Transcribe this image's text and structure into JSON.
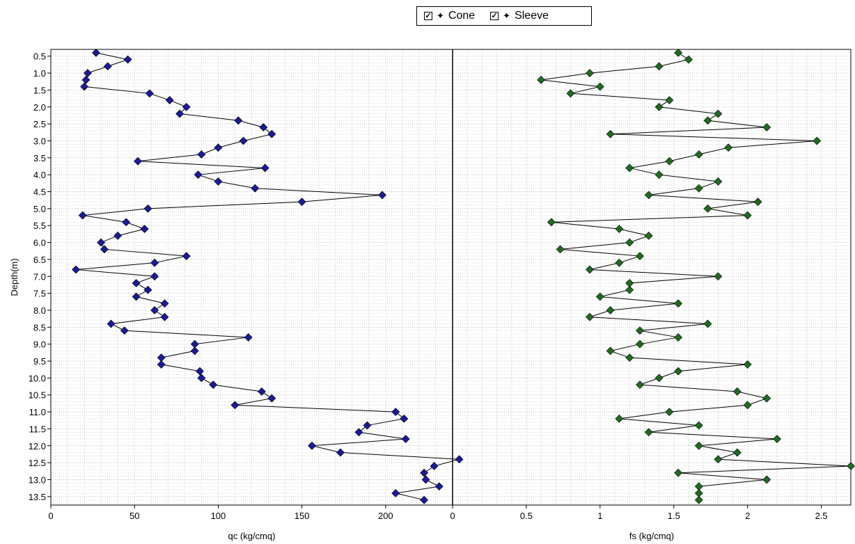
{
  "legend": {
    "cone": {
      "label": "Cone",
      "check": "✓",
      "marker": "✦"
    },
    "sleeve": {
      "label": "Sleeve",
      "check": "✓",
      "marker": "✦"
    }
  },
  "chart_data": [
    {
      "type": "line",
      "name": "Cone",
      "xlabel": "qc (kg/cmq)",
      "ylabel": "Depth(m)",
      "xlim": [
        0,
        240
      ],
      "ylim": [
        13.75,
        0.3
      ],
      "xticks": [
        0,
        50,
        100,
        150,
        200
      ],
      "xtick_labels": [
        "0",
        "50",
        "100",
        "150",
        "200"
      ],
      "yticks": [
        0.5,
        1,
        1.5,
        2,
        2.5,
        3,
        3.5,
        4,
        4.5,
        5,
        5.5,
        6,
        6.5,
        7,
        7.5,
        8,
        8.5,
        9,
        9.5,
        10,
        10.5,
        11,
        11.5,
        12,
        12.5,
        13,
        13.5
      ],
      "ytick_labels": [
        "0.5",
        "1.0",
        "1.5",
        "2.0",
        "2.5",
        "3.0",
        "3.5",
        "4.0",
        "4.5",
        "5.0",
        "5.5",
        "6.0",
        "6.5",
        "7.0",
        "7.5",
        "8.0",
        "8.5",
        "9.0",
        "9.5",
        "10.0",
        "10.5",
        "11.0",
        "11.5",
        "12.0",
        "12.5",
        "13.0",
        "13.5"
      ],
      "grid": true,
      "color": "#1a1a9a",
      "series": [
        {
          "depth": [
            0.4,
            0.6,
            0.8,
            1.0,
            1.2,
            1.4,
            1.6,
            1.8,
            2.0,
            2.2,
            2.4,
            2.6,
            2.8,
            3.0,
            3.2,
            3.4,
            3.6,
            3.8,
            4.0,
            4.2,
            4.4,
            4.6,
            4.8,
            5.0,
            5.2,
            5.4,
            5.6,
            5.8,
            6.0,
            6.2,
            6.4,
            6.6,
            6.8,
            7.0,
            7.2,
            7.4,
            7.6,
            7.8,
            8.0,
            8.2,
            8.4,
            8.6,
            8.8,
            9.0,
            9.2,
            9.4,
            9.6,
            9.8,
            10.0,
            10.2,
            10.4,
            10.6,
            10.8,
            11.0,
            11.2,
            11.4,
            11.6,
            11.8,
            12.0,
            12.2,
            12.4,
            12.6,
            12.8,
            13.0,
            13.2,
            13.4,
            13.6
          ],
          "qc": [
            27,
            46,
            34,
            22,
            21,
            20,
            59,
            71,
            81,
            77,
            112,
            127,
            132,
            115,
            100,
            90,
            52,
            128,
            88,
            100,
            122,
            198,
            150,
            58,
            19,
            45,
            56,
            40,
            30,
            32,
            81,
            62,
            15,
            62,
            51,
            58,
            51,
            68,
            62,
            68,
            36,
            44,
            118,
            86,
            86,
            66,
            66,
            89,
            90,
            97,
            126,
            132,
            110,
            206,
            211,
            189,
            184,
            212,
            156,
            173,
            244,
            229,
            223,
            224,
            232,
            206,
            223
          ]
        }
      ]
    },
    {
      "type": "line",
      "name": "Sleeve",
      "xlabel": "fs (kg/cmq)",
      "ylabel": "",
      "xlim": [
        0,
        2.7
      ],
      "ylim": [
        13.75,
        0.3
      ],
      "xticks": [
        0,
        0.5,
        1,
        1.5,
        2,
        2.5
      ],
      "xtick_labels": [
        "0",
        "0.5",
        "1",
        "1.5",
        "2",
        "2.5"
      ],
      "grid": true,
      "color": "#1f6b1f",
      "series": [
        {
          "depth": [
            0.4,
            0.6,
            0.8,
            1.0,
            1.2,
            1.4,
            1.6,
            1.8,
            2.0,
            2.2,
            2.4,
            2.6,
            2.8,
            3.0,
            3.2,
            3.4,
            3.6,
            3.8,
            4.0,
            4.2,
            4.4,
            4.6,
            4.8,
            5.0,
            5.2,
            5.4,
            5.6,
            5.8,
            6.0,
            6.2,
            6.4,
            6.6,
            6.8,
            7.0,
            7.2,
            7.4,
            7.6,
            7.8,
            8.0,
            8.2,
            8.4,
            8.6,
            8.8,
            9.0,
            9.2,
            9.4,
            9.6,
            9.8,
            10.0,
            10.2,
            10.4,
            10.6,
            10.8,
            11.0,
            11.2,
            11.4,
            11.6,
            11.8,
            12.0,
            12.2,
            12.4,
            12.6,
            12.8,
            13.0,
            13.2,
            13.4,
            13.6
          ],
          "fs": [
            1.53,
            1.6,
            1.4,
            0.93,
            0.6,
            1.0,
            0.8,
            1.47,
            1.4,
            1.8,
            1.73,
            2.13,
            1.07,
            2.47,
            1.87,
            1.67,
            1.47,
            1.2,
            1.4,
            1.8,
            1.67,
            1.33,
            2.07,
            1.73,
            2.0,
            0.67,
            1.13,
            1.33,
            1.2,
            0.73,
            1.27,
            1.13,
            0.93,
            1.8,
            1.2,
            1.2,
            1.0,
            1.53,
            1.07,
            0.93,
            1.73,
            1.27,
            1.53,
            1.27,
            1.07,
            1.2,
            2.0,
            1.53,
            1.4,
            1.27,
            1.93,
            2.13,
            2.0,
            1.47,
            1.13,
            1.67,
            1.33,
            2.2,
            1.67,
            1.93,
            1.8,
            2.7,
            1.53,
            2.13,
            1.67,
            1.67,
            1.67
          ]
        }
      ]
    }
  ]
}
